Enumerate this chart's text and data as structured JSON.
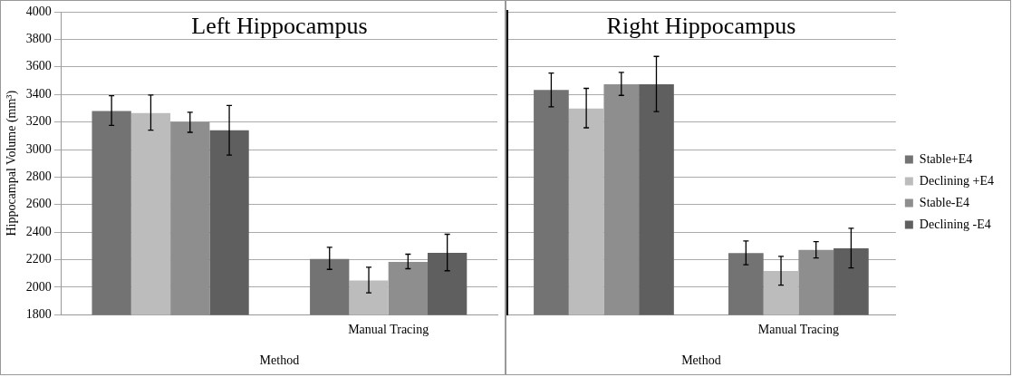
{
  "chart_data": [
    {
      "type": "bar",
      "title": "Left Hippocampus",
      "xlabel": "Method",
      "ylabel": "Hippocampal Volume (mm³)",
      "categories": [
        null,
        "Manual Tracing"
      ],
      "ylim": [
        1800,
        4000
      ],
      "yticks": [
        1800,
        2000,
        2200,
        2400,
        2600,
        2800,
        3000,
        3200,
        3400,
        3600,
        3800,
        4000
      ],
      "grid": "y",
      "legend": false,
      "series": [
        {
          "color": "#737373",
          "values": [
            3280,
            2205
          ],
          "errors": [
            [
              3175,
              3390
            ],
            [
              2130,
              2290
            ]
          ]
        },
        {
          "color": "#bcbcbc",
          "values": [
            3265,
            2050
          ],
          "errors": [
            [
              3140,
              3395
            ],
            [
              1960,
              2145
            ]
          ]
        },
        {
          "color": "#8e8e8e",
          "values": [
            3200,
            2185
          ],
          "errors": [
            [
              3125,
              3270
            ],
            [
              2135,
              2240
            ]
          ]
        },
        {
          "color": "#5f5f5f",
          "values": [
            3140,
            2250
          ],
          "errors": [
            [
              2960,
              3320
            ],
            [
              2120,
              2385
            ]
          ]
        }
      ]
    },
    {
      "type": "bar",
      "title": "Right Hippocampus",
      "xlabel": "Method",
      "categories": [
        null,
        "Manual Tracing"
      ],
      "ylim": [
        1800,
        4000
      ],
      "yticks": [
        1800,
        2000,
        2200,
        2400,
        2600,
        2800,
        3000,
        3200,
        3400,
        3600,
        3800,
        4000
      ],
      "grid": "y",
      "legend": "right",
      "tick_labels": "x",
      "series": [
        {
          "name": "Stable+E4",
          "color": "#737373",
          "values": [
            3433,
            2248
          ],
          "errors": [
            [
              3310,
              3555
            ],
            [
              2164,
              2337
            ]
          ]
        },
        {
          "name": "Declining +E4",
          "color": "#bcbcbc",
          "values": [
            3298,
            2118
          ],
          "errors": [
            [
              3158,
              3444
            ],
            [
              2016,
              2224
            ]
          ]
        },
        {
          "name": "Stable-E4",
          "color": "#8e8e8e",
          "values": [
            3473,
            2272
          ],
          "errors": [
            [
              3393,
              3560
            ],
            [
              2213,
              2332
            ]
          ]
        },
        {
          "name": "Declining -E4",
          "color": "#5f5f5f",
          "values": [
            3473,
            2283
          ],
          "errors": [
            [
              3276,
              3676
            ],
            [
              2140,
              2429
            ]
          ]
        }
      ]
    }
  ]
}
